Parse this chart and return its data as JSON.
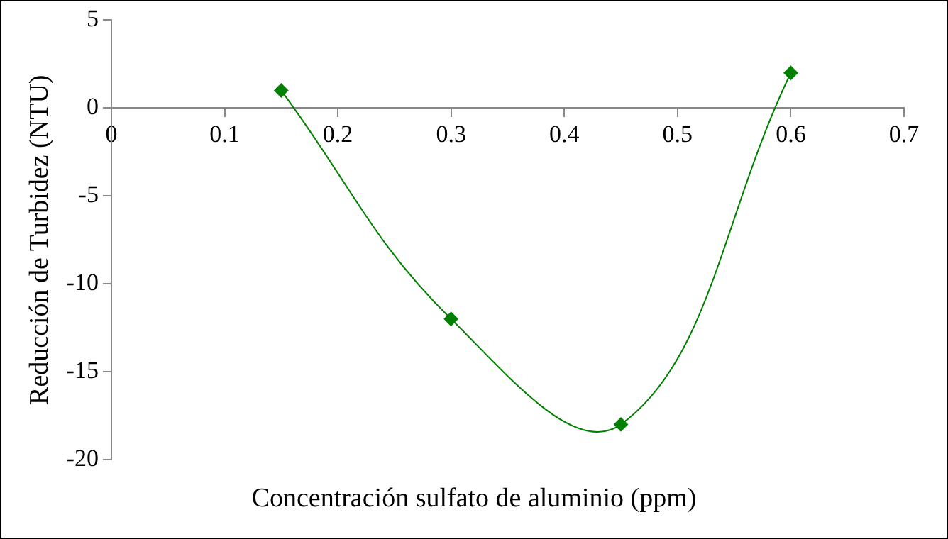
{
  "chart_data": {
    "type": "line",
    "xlabel": "Concentración sulfato de aluminio (ppm)",
    "ylabel": "Reducción de Turbidez (NTU)",
    "x": [
      0.15,
      0.3,
      0.45,
      0.6
    ],
    "series": [
      {
        "color": "#008000",
        "values": [
          1,
          -12,
          -18,
          2
        ]
      }
    ],
    "xlim": [
      0,
      0.7
    ],
    "xticks": [
      0,
      0.1,
      0.2,
      0.3,
      0.4,
      0.5,
      0.6,
      0.7
    ],
    "ylim": [
      -20,
      5
    ],
    "yticks": [
      5,
      0,
      -5,
      -10,
      -15,
      -20
    ],
    "grid": false,
    "legend": false,
    "marker": "diamond",
    "line_style": "solid"
  }
}
